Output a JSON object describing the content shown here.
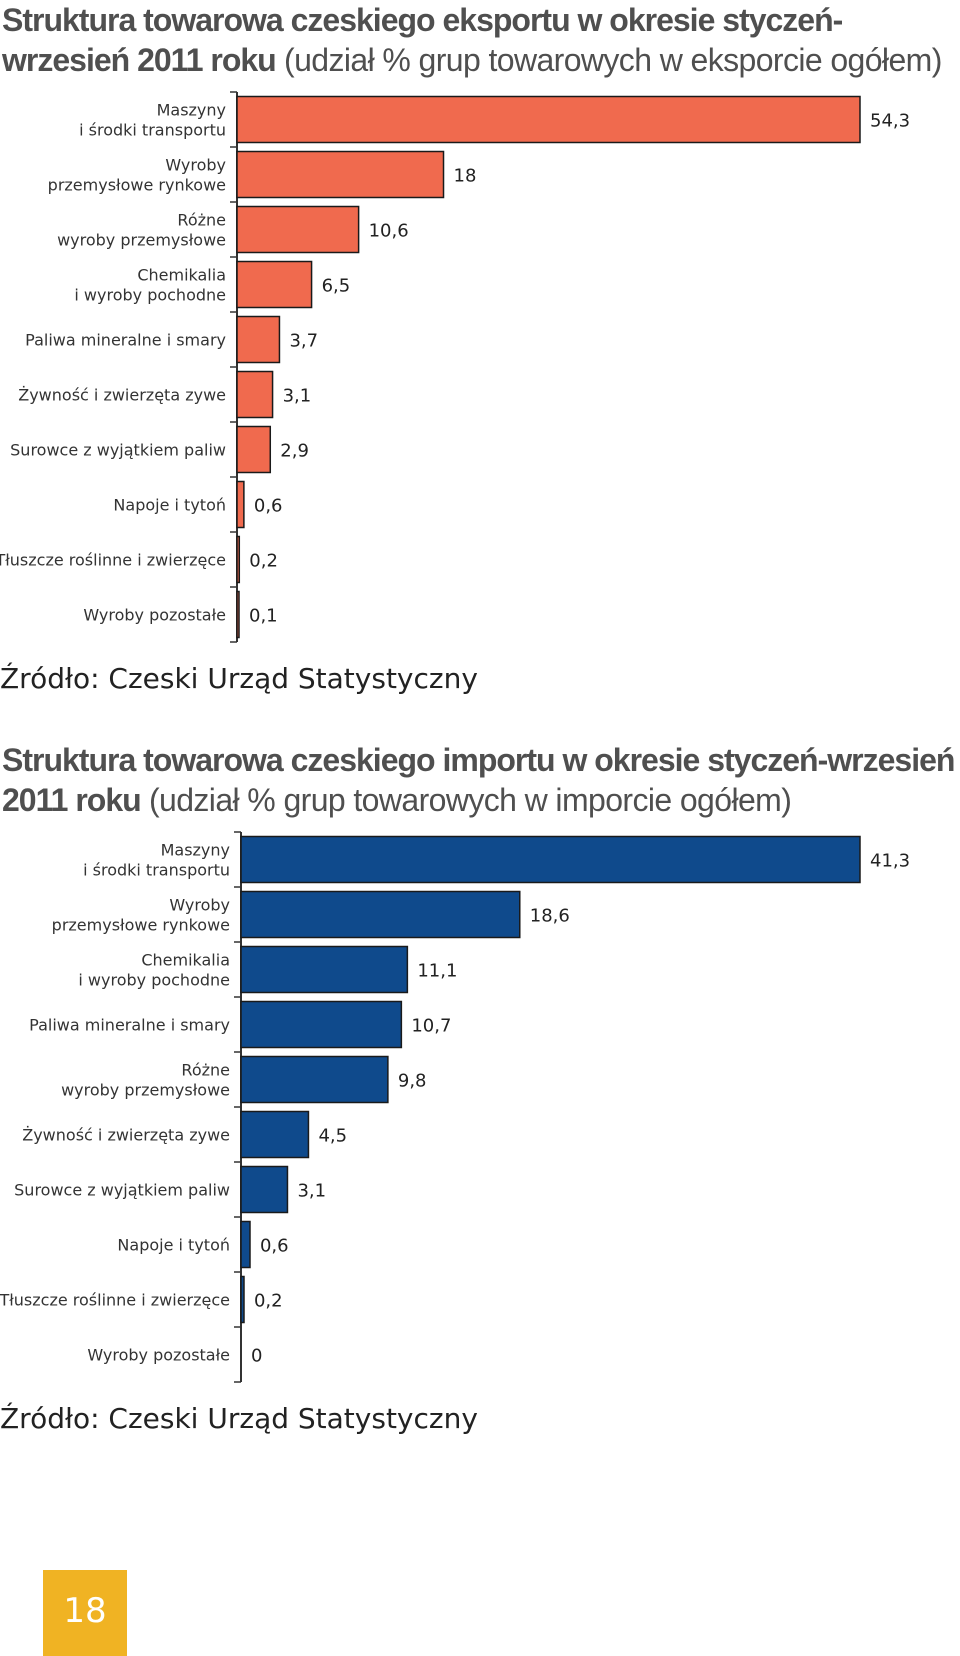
{
  "export": {
    "title_bold": "Struktura towarowa czeskiego eksportu w okresie styczeń-wrzesień 2011 roku",
    "title_light": "(udział % grup towarowych w eksporcie ogółem)",
    "source": "Źródło: Czeski Urząd Statystyczny"
  },
  "import": {
    "title_bold": "Struktura towarowa czeskiego importu w okresie styczeń-wrzesień 2011 roku",
    "title_light": "(udział % grup towarowych w imporcie ogółem)",
    "source": "Źródło: Czeski Urząd Statystyczny"
  },
  "page_number": "18",
  "colors": {
    "export_bar": "#f06a4e",
    "import_bar": "#0f4a8c",
    "bar_stroke": "#1a1a1a",
    "page_badge": "#f0b323"
  },
  "chart_data": [
    {
      "type": "bar",
      "orientation": "horizontal",
      "title": "Struktura towarowa czeskiego eksportu w okresie styczeń-wrzesień 2011 roku (udział % grup towarowych w eksporcie ogółem)",
      "categories": [
        [
          "Maszyny",
          "i środki transportu"
        ],
        [
          "Wyroby",
          "przemysłowe rynkowe"
        ],
        [
          "Różne",
          "wyroby przemysłowe"
        ],
        [
          "Chemikalia",
          "i wyroby pochodne"
        ],
        [
          "Paliwa mineralne i smary"
        ],
        [
          "Żywność i zwierzęta zywe"
        ],
        [
          "Surowce z wyjątkiem paliw"
        ],
        [
          "Napoje i tytoń"
        ],
        [
          "Tłuszcze roślinne i zwierzęce"
        ],
        [
          "Wyroby pozostałe"
        ]
      ],
      "values": [
        54.3,
        18,
        10.6,
        6.5,
        3.7,
        3.1,
        2.9,
        0.6,
        0.2,
        0.1
      ],
      "value_labels": [
        "54,3",
        "18",
        "10,6",
        "6,5",
        "3,7",
        "3,1",
        "2,9",
        "0,6",
        "0,2",
        "0,1"
      ],
      "color": "#f06a4e",
      "xlim": [
        0,
        54.3
      ],
      "grid": false,
      "legend": "none"
    },
    {
      "type": "bar",
      "orientation": "horizontal",
      "title": "Struktura towarowa czeskiego importu w okresie styczeń-wrzesień 2011 roku (udział % grup towarowych w imporcie ogółem)",
      "categories": [
        [
          "Maszyny",
          "i środki transportu"
        ],
        [
          "Wyroby",
          "przemysłowe rynkowe"
        ],
        [
          "Chemikalia",
          "i wyroby pochodne"
        ],
        [
          "Paliwa mineralne i smary"
        ],
        [
          "Różne",
          "wyroby przemysłowe"
        ],
        [
          "Żywność i zwierzęta zywe"
        ],
        [
          "Surowce z wyjątkiem paliw"
        ],
        [
          "Napoje i tytoń"
        ],
        [
          "Tłuszcze roślinne i zwierzęce"
        ],
        [
          "Wyroby pozostałe"
        ]
      ],
      "values": [
        41.3,
        18.6,
        11.1,
        10.7,
        9.8,
        4.5,
        3.1,
        0.6,
        0.2,
        0
      ],
      "value_labels": [
        "41,3",
        "18,6",
        "11,1",
        "10,7",
        "9,8",
        "4,5",
        "3,1",
        "0,6",
        "0,2",
        "0"
      ],
      "color": "#0f4a8c",
      "xlim": [
        0,
        41.3
      ],
      "grid": false,
      "legend": "none"
    }
  ]
}
